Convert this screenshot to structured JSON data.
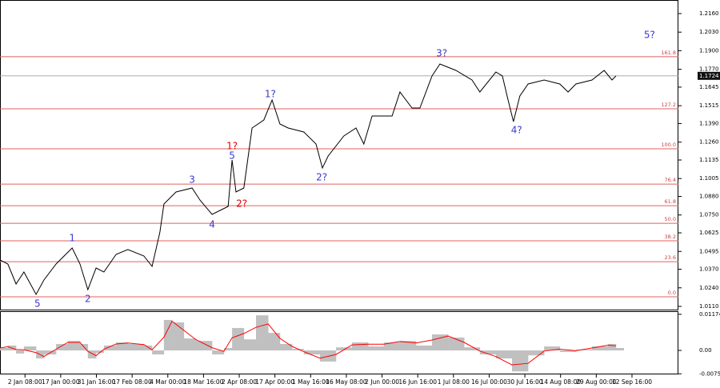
{
  "chart_data": [
    {
      "type": "line",
      "x": [
        0,
        2.2,
        4.5,
        6.7,
        10.1,
        12.3,
        15.7,
        20.2,
        22.4,
        24.6,
        26.9,
        29.1,
        32.5,
        35.8,
        40.3,
        42.6,
        44.8,
        45.9,
        49.3,
        53.8,
        56.0,
        59.4,
        63.9,
        65.0,
        66.1,
        68.3,
        70.6,
        73.9,
        76.2,
        78.4,
        80.7,
        85.1,
        88.5,
        90.3,
        91.9,
        96.3,
        99.7,
        101.9,
        104.2,
        109.8,
        112.0,
        115.4,
        117.6,
        121.0,
        123.2,
        127.7,
        132.2,
        134.4,
        138.9,
        140.7,
        142.3,
        143.8,
        145.6,
        147.9,
        152.4,
        156.8,
        159.1,
        161.3,
        165.8,
        169.2,
        171.4,
        172.5
      ],
      "values": [
        1.0435,
        1.0407,
        1.0267,
        1.0351,
        1.0194,
        1.0295,
        1.0407,
        1.0519,
        1.0407,
        1.0227,
        1.0379,
        1.0351,
        1.0474,
        1.0508,
        1.0463,
        1.039,
        1.0631,
        1.0827,
        1.0911,
        1.0939,
        1.0855,
        1.0754,
        1.081,
        1.1135,
        1.0911,
        1.0939,
        1.1359,
        1.1415,
        1.1555,
        1.1387,
        1.1359,
        1.1331,
        1.1247,
        1.1079,
        1.1163,
        1.1303,
        1.1359,
        1.1247,
        1.1443,
        1.1443,
        1.1611,
        1.1499,
        1.1499,
        1.1723,
        1.1807,
        1.1762,
        1.1695,
        1.1611,
        1.1751,
        1.1723,
        1.1555,
        1.1404,
        1.1583,
        1.1667,
        1.1695,
        1.1667,
        1.1611,
        1.1667,
        1.1695,
        1.1762,
        1.1695,
        1.1723
      ],
      "color": "#000000",
      "xlim": [
        0,
        190
      ],
      "ylim": [
        1.0082,
        1.2255
      ],
      "yticks": [
        {
          "value": 1.216,
          "label": "1.2160"
        },
        {
          "value": 1.203,
          "label": "1.2030"
        },
        {
          "value": 1.19,
          "label": "1.1900"
        },
        {
          "value": 1.177,
          "label": "1.1770"
        },
        1.1645,
        1.1515,
        {
          "value": 1.139,
          "label": "1.1390"
        },
        {
          "value": 1.126,
          "label": "1.1260"
        },
        1.1135,
        1.1005,
        {
          "value": 1.088,
          "label": "1.0880"
        },
        {
          "value": 1.075,
          "label": "1.0750"
        },
        1.0625,
        1.0495,
        {
          "value": 1.037,
          "label": "1.0370"
        },
        {
          "value": 1.024,
          "label": "1.0240"
        },
        {
          "value": 1.011,
          "label": "1.0110"
        }
      ],
      "xticks": [
        {
          "value": 7,
          "label": "2 Jan 08:00"
        },
        {
          "value": 17,
          "label": "17 Jan 00:00"
        },
        {
          "value": 27,
          "label": "31 Jan 16:00"
        },
        {
          "value": 37,
          "label": "17 Feb 08:00"
        },
        {
          "value": 47,
          "label": "4 Mar 00:00"
        },
        {
          "value": 57,
          "label": "18 Mar 16:00"
        },
        {
          "value": 67,
          "label": "2 Apr 08:00"
        },
        {
          "value": 77,
          "label": "17 Apr 00:00"
        },
        {
          "value": 87,
          "label": "1 May 16:00"
        },
        {
          "value": 97,
          "label": "16 May 08:00"
        },
        {
          "value": 107,
          "label": "2 Jun 00:00"
        },
        {
          "value": 117,
          "label": "16 Jun 16:00"
        },
        {
          "value": 127,
          "label": "1 Jul 08:00"
        },
        {
          "value": 137,
          "label": "16 Jul 00:00"
        },
        {
          "value": 147,
          "label": "30 Jul 16:00"
        },
        {
          "value": 157,
          "label": "14 Aug 08:00"
        },
        {
          "value": 167,
          "label": "29 Aug 00:00"
        },
        {
          "value": 177,
          "label": "12 Sep 16:00"
        }
      ],
      "levels": [
        {
          "label": "161.8",
          "value": 1.1858
        },
        {
          "label": "127.2",
          "value": 1.1493
        },
        {
          "label": "100.0",
          "value": 1.1213
        },
        {
          "label": "76.4",
          "value": 1.0966
        },
        {
          "label": "61.8",
          "value": 1.0815
        },
        {
          "label": "50.0",
          "value": 1.0692
        },
        {
          "label": "38.2",
          "value": 1.0569
        },
        {
          "label": "23.6",
          "value": 1.0423
        },
        {
          "label": "0.0",
          "value": 1.0177
        }
      ],
      "level_color": "#e06060",
      "last_value": 1.1724,
      "annotations": [
        {
          "text": "5",
          "x": 10.5,
          "y": 1.0127,
          "color": "#3a3ad0"
        },
        {
          "text": "1",
          "x": 20.2,
          "y": 1.0586,
          "color": "#3a3ad0"
        },
        {
          "text": "2",
          "x": 24.6,
          "y": 1.016,
          "color": "#3a3ad0"
        },
        {
          "text": "3",
          "x": 53.8,
          "y": 1.0995,
          "color": "#3a3ad0"
        },
        {
          "text": "4",
          "x": 59.4,
          "y": 1.0681,
          "color": "#3a3ad0"
        },
        {
          "text": "5",
          "x": 65.0,
          "y": 1.1163,
          "color": "#3a3ad0"
        },
        {
          "text": "1?",
          "x": 65.0,
          "y": 1.123,
          "color": "#e00000"
        },
        {
          "text": "2?",
          "x": 67.7,
          "y": 1.0827,
          "color": "#e00000"
        },
        {
          "text": "1?",
          "x": 75.7,
          "y": 1.1594,
          "color": "#3a3ad0"
        },
        {
          "text": "2?",
          "x": 90.1,
          "y": 1.1012,
          "color": "#3a3ad0"
        },
        {
          "text": "3?",
          "x": 123.7,
          "y": 1.188,
          "color": "#3a3ad0"
        },
        {
          "text": "4?",
          "x": 144.7,
          "y": 1.1342,
          "color": "#3a3ad0"
        },
        {
          "text": "5?",
          "x": 181.9,
          "y": 1.2009,
          "color": "#3a3ad0"
        }
      ]
    },
    {
      "type": "bar",
      "x": [
        0,
        2.2,
        4.5,
        6.7,
        10.1,
        12.3,
        15.7,
        19.0,
        22.4,
        24.6,
        26.9,
        29.1,
        32.5,
        35.8,
        40.3,
        42.6,
        45.9,
        48.2,
        51.5,
        54.9,
        59.4,
        62.7,
        65.0,
        68.3,
        71.7,
        75.1,
        78.4,
        81.8,
        85.1,
        89.6,
        94.1,
        98.6,
        103.1,
        107.5,
        112.0,
        116.5,
        121.0,
        125.5,
        130.0,
        134.4,
        138.9,
        143.4,
        147.9,
        152.4,
        156.8,
        161.3,
        165.8,
        170.3,
        172.5
      ],
      "values": [
        0.0008,
        0.0016,
        -0.001,
        0.0013,
        -0.0026,
        -0.0013,
        0.0021,
        0.0031,
        0.0021,
        -0.0026,
        -0.0008,
        0.0016,
        0.0026,
        0.0021,
        0.0016,
        -0.0013,
        0.0099,
        0.0091,
        0.0039,
        0.0031,
        -0.0013,
        0.0008,
        0.0073,
        0.0036,
        0.0114,
        0.0057,
        0.0021,
        0.0005,
        -0.0013,
        -0.0036,
        0.001,
        0.0026,
        0.0013,
        0.0026,
        0.0031,
        0.0016,
        0.0052,
        0.0042,
        0.001,
        -0.0013,
        -0.0026,
        -0.0068,
        -0.0016,
        0.0013,
        -0.0005,
        0.0003,
        0.0013,
        0.0021,
        0.0008
      ],
      "color": "#c0c0c0",
      "signal": {
        "color": "#ff0000",
        "values": [
          0.0008,
          0.0012,
          0.0003,
          0.0002,
          -0.0007,
          -0.002,
          0.0004,
          0.0026,
          0.0026,
          -0.0003,
          -0.0017,
          0.0004,
          0.0021,
          0.0024,
          0.0019,
          0.0002,
          0.0043,
          0.0095,
          0.0065,
          0.0035,
          0.0009,
          -0.0003,
          0.0041,
          0.0055,
          0.0075,
          0.0086,
          0.0039,
          0.0013,
          -0.0004,
          -0.0025,
          -0.0013,
          0.0018,
          0.002,
          0.002,
          0.0029,
          0.0024,
          0.0034,
          0.0047,
          0.0026,
          -0.0002,
          -0.002,
          -0.0047,
          -0.0042,
          -0.0002,
          0.0004,
          -0.0001,
          0.0008,
          0.0017,
          0.0015
        ]
      },
      "xlim": [
        0,
        190
      ],
      "ylim": [
        -0.0083,
        0.013
      ],
      "yticks": [
        0.01174,
        {
          "value": 0,
          "label": "0.00"
        },
        -0.00759
      ]
    }
  ]
}
